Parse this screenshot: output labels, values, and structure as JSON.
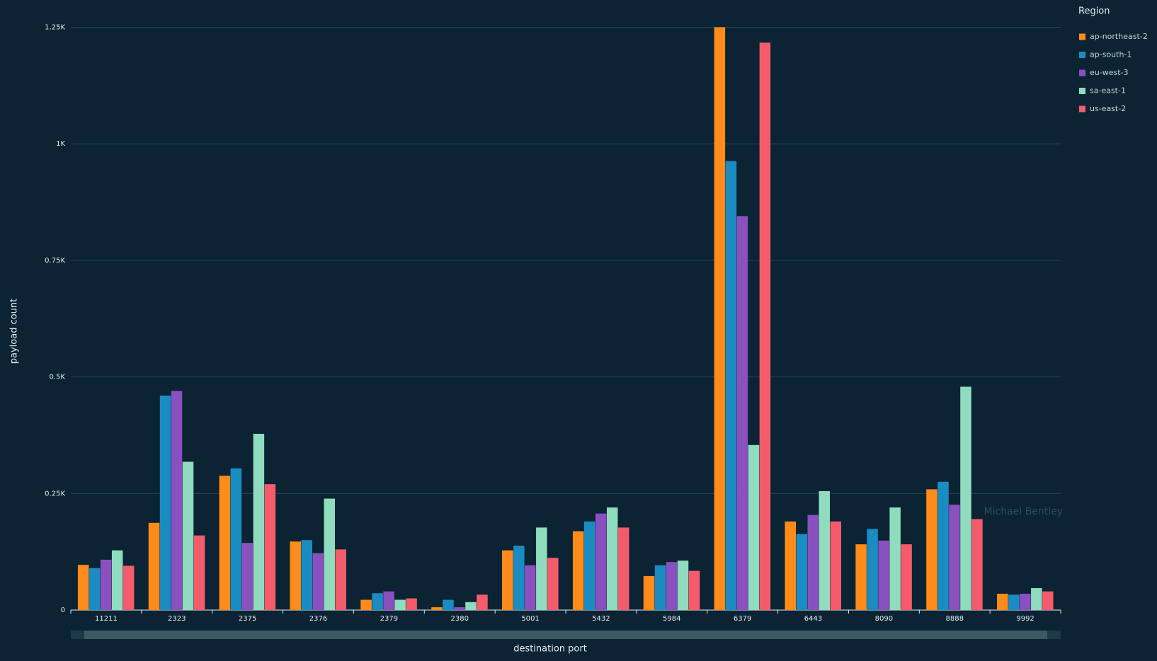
{
  "chart_data": {
    "type": "bar",
    "x_label": "destination port",
    "y_label": "payload count",
    "legend_title": "Region",
    "legend_position": "right",
    "watermark": "Michael Bentley",
    "grid": true,
    "categories": [
      "11211",
      "2323",
      "2375",
      "2376",
      "2379",
      "2380",
      "5001",
      "5432",
      "5984",
      "6379",
      "6443",
      "8090",
      "8888",
      "9992"
    ],
    "series": [
      {
        "name": "ap-northeast-2",
        "color": "#ff8c1a",
        "values": [
          97,
          187,
          288,
          147,
          22,
          6,
          128,
          169,
          73,
          1250,
          190,
          141,
          259,
          35
        ]
      },
      {
        "name": "ap-south-1",
        "color": "#1b8cc2",
        "values": [
          90,
          460,
          304,
          150,
          36,
          22,
          138,
          190,
          96,
          963,
          163,
          174,
          275,
          33
        ]
      },
      {
        "name": "eu-west-3",
        "color": "#8a50c0",
        "values": [
          108,
          470,
          144,
          122,
          40,
          6,
          96,
          207,
          103,
          845,
          204,
          149,
          226,
          35
        ]
      },
      {
        "name": "sa-east-1",
        "color": "#8fdcbf",
        "values": [
          128,
          318,
          378,
          239,
          22,
          17,
          177,
          220,
          106,
          354,
          255,
          220,
          479,
          47
        ]
      },
      {
        "name": "us-east-2",
        "color": "#f45c6c",
        "values": [
          95,
          160,
          270,
          130,
          25,
          33,
          112,
          177,
          84,
          1217,
          190,
          141,
          195,
          40
        ]
      }
    ],
    "ylim": [
      0,
      1250
    ],
    "yticks": [
      0,
      {
        "value": 250,
        "label": "0.25K"
      },
      {
        "value": 500,
        "label": "0.5K"
      },
      {
        "value": 750,
        "label": "0.75K"
      },
      {
        "value": 1000,
        "label": "1K"
      },
      {
        "value": 1250,
        "label": "1.25K"
      }
    ]
  }
}
